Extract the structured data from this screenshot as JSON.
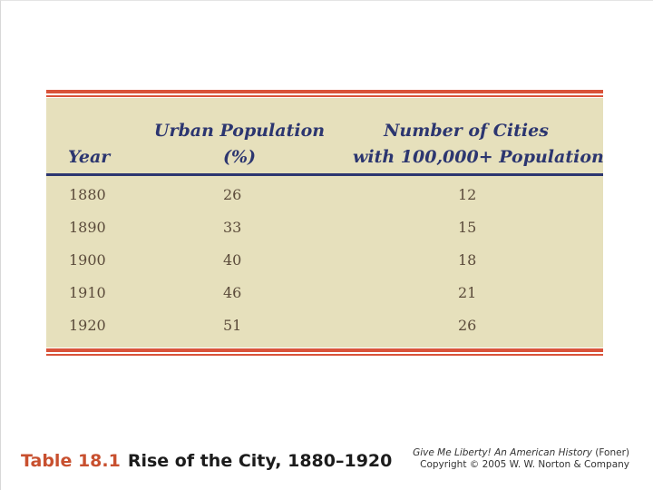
{
  "table": {
    "headers": {
      "year": "Year",
      "urban_line1": "Urban Population",
      "urban_line2": "(%)",
      "cities_line1": "Number of Cities",
      "cities_line2": "with 100,000+ Population"
    },
    "rows": [
      {
        "year": "1880",
        "urban": "26",
        "cities": "12"
      },
      {
        "year": "1890",
        "urban": "33",
        "cities": "15"
      },
      {
        "year": "1900",
        "urban": "40",
        "cities": "18"
      },
      {
        "year": "1910",
        "urban": "46",
        "cities": "21"
      },
      {
        "year": "1920",
        "urban": "51",
        "cities": "26"
      }
    ]
  },
  "caption": {
    "number": "Table 18.1",
    "title": "Rise of the City, 1880–1920"
  },
  "credit": {
    "book": "Give Me Liberty! An American History",
    "author": " (Foner)",
    "copyright": "Copyright © 2005 W. W. Norton & Company"
  },
  "colors": {
    "accent_rule": "#d9533a",
    "table_background": "#e6e0bc",
    "header_text": "#2c3670",
    "caption_number": "#c8502f"
  }
}
